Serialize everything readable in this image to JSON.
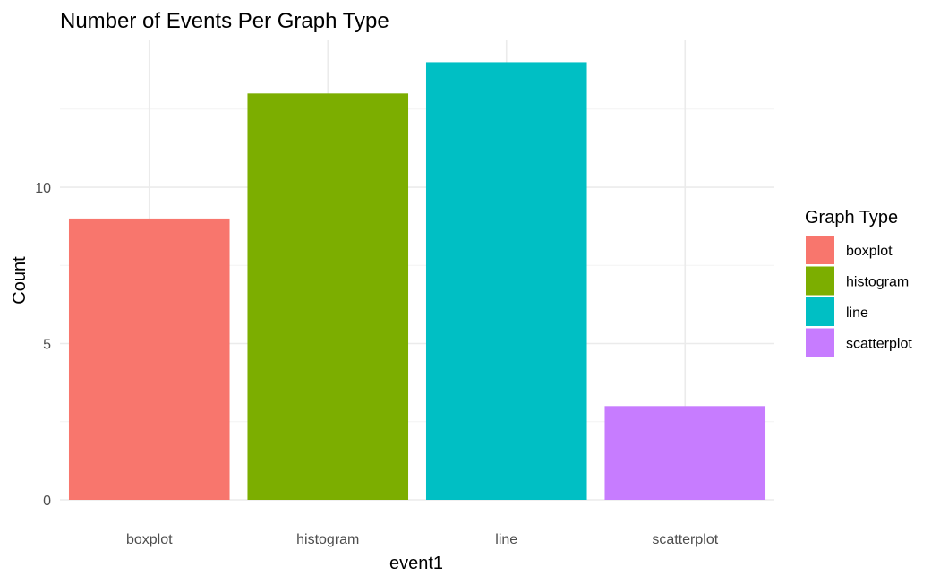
{
  "chart_data": {
    "type": "bar",
    "title": "Number of Events Per Graph Type",
    "xlabel": "event1",
    "ylabel": "Count",
    "categories": [
      "boxplot",
      "histogram",
      "line",
      "scatterplot"
    ],
    "values": [
      9,
      13,
      14,
      3
    ],
    "colors": [
      "#F8766D",
      "#7CAE00",
      "#00BFC4",
      "#C77CFF"
    ],
    "ylim": [
      0,
      14.7
    ],
    "yticks": [
      0,
      5,
      10
    ],
    "yticks_minor": [
      2.5,
      7.5,
      12.5
    ],
    "grid": true,
    "legend": {
      "title": "Graph Type",
      "position": "right",
      "items": [
        "boxplot",
        "histogram",
        "line",
        "scatterplot"
      ]
    }
  }
}
